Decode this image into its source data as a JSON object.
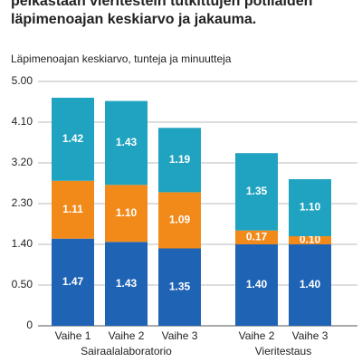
{
  "chart_data": {
    "type": "bar",
    "title_lines": [
      "pelkästään vieritestein tutkittujen potilaiden",
      "läpimenoajan keskiarvo ja jakauma."
    ],
    "subtitle": "Läpimenoajan keskiarvo, tunteja ja minuutteja",
    "groups": [
      {
        "name": "Sairaalalaboratorio",
        "categories": [
          "Vaihe 1",
          "Vaihe 2",
          "Vaihe 3"
        ]
      },
      {
        "name": "Vieritestaus",
        "categories": [
          "Vaihe 2",
          "Vaihe 3"
        ]
      }
    ],
    "stacked": true,
    "series": [
      {
        "color": "#1f63b5",
        "values": [
          107,
          103,
          95,
          100,
          100
        ],
        "value_labels": [
          "1.47",
          "1.43",
          "1.35",
          "1.40",
          "1.40"
        ]
      },
      {
        "color": "#f28a1a",
        "values": [
          71,
          70,
          69,
          17,
          10
        ],
        "value_labels": [
          "1.11",
          "1.10",
          "1.09",
          "0.17",
          "0.10"
        ]
      },
      {
        "color": "#1fa3c0",
        "values": [
          102,
          103,
          79,
          95,
          70
        ],
        "value_labels": [
          "1.42",
          "1.43",
          "1.19",
          "1.35",
          "1.10"
        ]
      }
    ],
    "ylim": [
      0,
      300
    ],
    "yticks": [
      0,
      {
        "value": 50,
        "label": "0.50"
      },
      {
        "value": 100,
        "label": "1.40"
      },
      {
        "value": 150,
        "label": "2.30"
      },
      {
        "value": 200,
        "label": "3.20"
      },
      {
        "value": 250,
        "label": "4.10"
      },
      {
        "value": 300,
        "label": "5.00"
      }
    ],
    "grid": true
  }
}
